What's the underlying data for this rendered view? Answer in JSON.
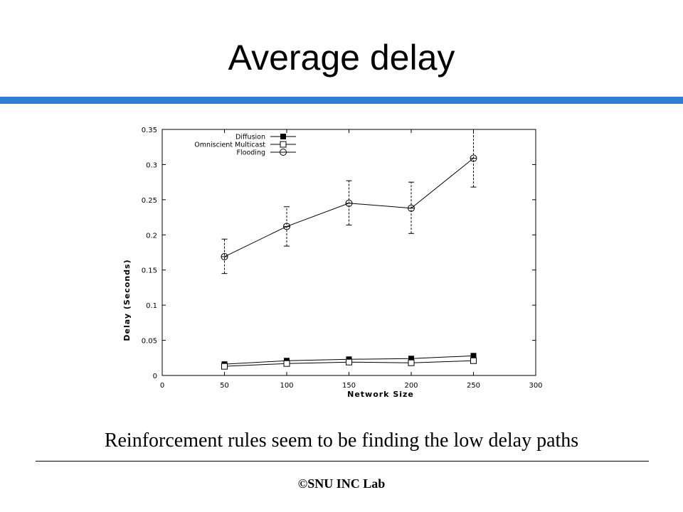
{
  "slide": {
    "title": "Average delay",
    "caption": "Reinforcement rules seem to be finding the low delay paths",
    "footer": "©SNU INC Lab",
    "accent_color": "#2e7dd1"
  },
  "chart_data": {
    "type": "line",
    "xlabel": "Network Size",
    "ylabel": "Delay (Seconds)",
    "xlim": [
      0,
      300
    ],
    "ylim": [
      0,
      0.35
    ],
    "x_ticks": [
      0,
      50,
      100,
      150,
      200,
      250,
      300
    ],
    "y_ticks": [
      0,
      0.05,
      0.1,
      0.15,
      0.2,
      0.25,
      0.3,
      0.35
    ],
    "x_tick_labels": [
      "0",
      "50",
      "100",
      "150",
      "200",
      "250",
      "300"
    ],
    "y_tick_labels": [
      "0",
      "0.05",
      "0.1",
      "0.15",
      "0.2",
      "0.25",
      "0.3",
      "0.35"
    ],
    "grid": false,
    "legend_position": "top-left",
    "x": [
      50,
      100,
      150,
      200,
      250
    ],
    "series": [
      {
        "name": "Diffusion",
        "marker": "filled-square",
        "values": [
          0.016,
          0.021,
          0.023,
          0.024,
          0.028
        ]
      },
      {
        "name": "Omniscient Multicast",
        "marker": "open-square",
        "values": [
          0.013,
          0.017,
          0.019,
          0.018,
          0.021
        ]
      },
      {
        "name": "Flooding",
        "marker": "open-circle",
        "values": [
          0.169,
          0.212,
          0.245,
          0.238,
          0.309
        ],
        "error_low": [
          0.145,
          0.184,
          0.214,
          0.202,
          0.268
        ],
        "error_high": [
          0.194,
          0.24,
          0.277,
          0.275,
          0.35
        ]
      }
    ]
  }
}
